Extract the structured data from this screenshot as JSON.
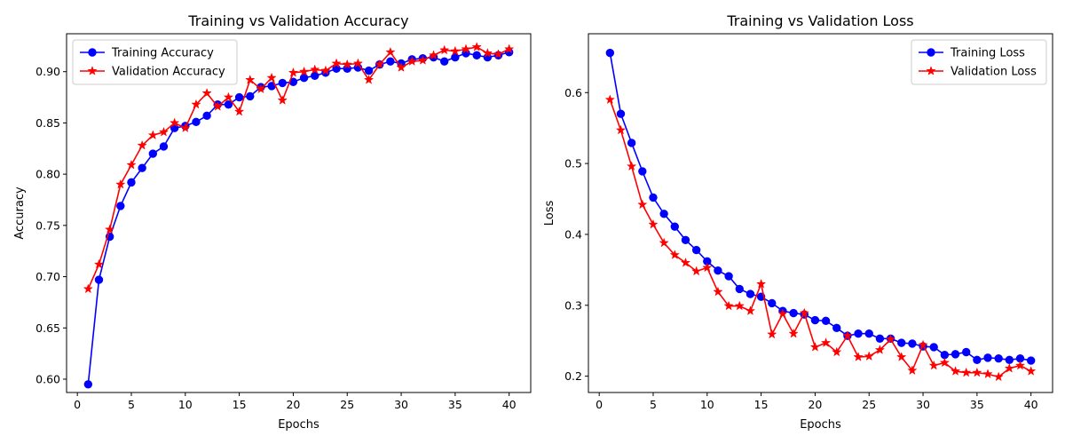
{
  "chart_data": [
    {
      "type": "line",
      "title": "Training vs Validation Accuracy",
      "xlabel": "Epochs",
      "ylabel": "Accuracy",
      "xlim": [
        -1,
        42
      ],
      "ylim": [
        0.587,
        0.937
      ],
      "xticks": [
        0,
        5,
        10,
        15,
        20,
        25,
        30,
        35,
        40
      ],
      "yticks": [
        0.6,
        0.65,
        0.7,
        0.75,
        0.8,
        0.85,
        0.9
      ],
      "ytick_labels": [
        "0.60",
        "0.65",
        "0.70",
        "0.75",
        "0.80",
        "0.85",
        "0.90"
      ],
      "grid": false,
      "legend_position": "top-left",
      "x": [
        1,
        2,
        3,
        4,
        5,
        6,
        7,
        8,
        9,
        10,
        11,
        12,
        13,
        14,
        15,
        16,
        17,
        18,
        19,
        20,
        21,
        22,
        23,
        24,
        25,
        26,
        27,
        28,
        29,
        30,
        31,
        32,
        33,
        34,
        35,
        36,
        37,
        38,
        39,
        40
      ],
      "series": [
        {
          "name": "Training Accuracy",
          "color": "#0000ff",
          "marker": "circle",
          "values": [
            0.595,
            0.697,
            0.739,
            0.769,
            0.792,
            0.806,
            0.82,
            0.827,
            0.845,
            0.847,
            0.851,
            0.857,
            0.868,
            0.868,
            0.875,
            0.876,
            0.885,
            0.886,
            0.889,
            0.89,
            0.894,
            0.896,
            0.899,
            0.903,
            0.903,
            0.904,
            0.901,
            0.907,
            0.91,
            0.908,
            0.912,
            0.913,
            0.914,
            0.91,
            0.914,
            0.918,
            0.916,
            0.914,
            0.916,
            0.919
          ]
        },
        {
          "name": "Validation Accuracy",
          "color": "#ff0000",
          "marker": "star",
          "values": [
            0.688,
            0.712,
            0.746,
            0.79,
            0.809,
            0.828,
            0.838,
            0.841,
            0.85,
            0.845,
            0.868,
            0.879,
            0.866,
            0.875,
            0.861,
            0.892,
            0.883,
            0.894,
            0.872,
            0.899,
            0.9,
            0.902,
            0.901,
            0.908,
            0.907,
            0.908,
            0.892,
            0.907,
            0.919,
            0.904,
            0.91,
            0.911,
            0.916,
            0.921,
            0.92,
            0.922,
            0.924,
            0.918,
            0.917,
            0.922
          ]
        }
      ]
    },
    {
      "type": "line",
      "title": "Training vs Validation Loss",
      "xlabel": "Epochs",
      "ylabel": "Loss",
      "xlim": [
        -1,
        42
      ],
      "ylim": [
        0.177,
        0.683
      ],
      "xticks": [
        0,
        5,
        10,
        15,
        20,
        25,
        30,
        35,
        40
      ],
      "yticks": [
        0.2,
        0.3,
        0.4,
        0.5,
        0.6
      ],
      "ytick_labels": [
        "0.2",
        "0.3",
        "0.4",
        "0.5",
        "0.6"
      ],
      "grid": false,
      "legend_position": "top-right",
      "x": [
        1,
        2,
        3,
        4,
        5,
        6,
        7,
        8,
        9,
        10,
        11,
        12,
        13,
        14,
        15,
        16,
        17,
        18,
        19,
        20,
        21,
        22,
        23,
        24,
        25,
        26,
        27,
        28,
        29,
        30,
        31,
        32,
        33,
        34,
        35,
        36,
        37,
        38,
        39,
        40
      ],
      "series": [
        {
          "name": "Training Loss",
          "color": "#0000ff",
          "marker": "circle",
          "values": [
            0.656,
            0.57,
            0.529,
            0.489,
            0.452,
            0.429,
            0.411,
            0.392,
            0.378,
            0.362,
            0.349,
            0.341,
            0.323,
            0.316,
            0.312,
            0.303,
            0.292,
            0.289,
            0.287,
            0.279,
            0.278,
            0.268,
            0.257,
            0.26,
            0.26,
            0.253,
            0.253,
            0.247,
            0.246,
            0.242,
            0.241,
            0.23,
            0.231,
            0.234,
            0.223,
            0.226,
            0.225,
            0.223,
            0.225,
            0.222
          ]
        },
        {
          "name": "Validation Loss",
          "color": "#ff0000",
          "marker": "star",
          "values": [
            0.59,
            0.547,
            0.496,
            0.442,
            0.414,
            0.388,
            0.371,
            0.36,
            0.348,
            0.353,
            0.319,
            0.299,
            0.299,
            0.292,
            0.33,
            0.259,
            0.288,
            0.26,
            0.289,
            0.241,
            0.247,
            0.234,
            0.257,
            0.227,
            0.228,
            0.237,
            0.252,
            0.227,
            0.208,
            0.244,
            0.215,
            0.219,
            0.207,
            0.205,
            0.205,
            0.203,
            0.199,
            0.211,
            0.215,
            0.207
          ]
        }
      ]
    }
  ]
}
